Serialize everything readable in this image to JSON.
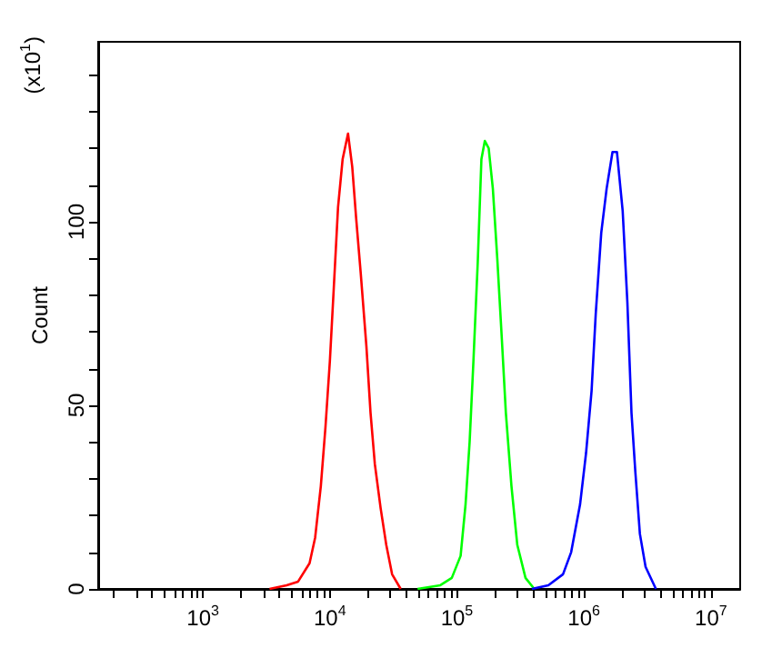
{
  "chart_data": {
    "type": "line",
    "ylabel": "Count",
    "annotations": [
      "(x10$^{1}$)"
    ],
    "xlim": [
      150,
      17000000
    ],
    "ylim": [
      0,
      149
    ],
    "log": "x",
    "grid": false,
    "marker": "none",
    "line_style": "solid",
    "xticks": [
      {
        "value": 200,
        "label": null
      },
      {
        "value": 300,
        "label": null
      },
      {
        "value": 400,
        "label": null
      },
      {
        "value": 500,
        "label": null
      },
      {
        "value": 600,
        "label": null
      },
      {
        "value": 700,
        "label": null
      },
      {
        "value": 800,
        "label": null
      },
      {
        "value": 900,
        "label": null
      },
      {
        "value": 1000,
        "label": "10$^{3}$"
      },
      {
        "value": 2000,
        "label": null
      },
      {
        "value": 3000,
        "label": null
      },
      {
        "value": 4000,
        "label": null
      },
      {
        "value": 5000,
        "label": null
      },
      {
        "value": 6000,
        "label": null
      },
      {
        "value": 7000,
        "label": null
      },
      {
        "value": 8000,
        "label": null
      },
      {
        "value": 9000,
        "label": null
      },
      {
        "value": 10000,
        "label": "10$^{4}$"
      },
      {
        "value": 20000,
        "label": null
      },
      {
        "value": 30000,
        "label": null
      },
      {
        "value": 40000,
        "label": null
      },
      {
        "value": 50000,
        "label": null
      },
      {
        "value": 60000,
        "label": null
      },
      {
        "value": 70000,
        "label": null
      },
      {
        "value": 80000,
        "label": null
      },
      {
        "value": 90000,
        "label": null
      },
      {
        "value": 100000,
        "label": "10$^{5}$"
      },
      {
        "value": 200000,
        "label": null
      },
      {
        "value": 300000,
        "label": null
      },
      {
        "value": 400000,
        "label": null
      },
      {
        "value": 500000,
        "label": null
      },
      {
        "value": 600000,
        "label": null
      },
      {
        "value": 700000,
        "label": null
      },
      {
        "value": 800000,
        "label": null
      },
      {
        "value": 900000,
        "label": null
      },
      {
        "value": 1000000,
        "label": "10$^{6}$"
      },
      {
        "value": 2000000,
        "label": null
      },
      {
        "value": 3000000,
        "label": null
      },
      {
        "value": 4000000,
        "label": null
      },
      {
        "value": 5000000,
        "label": null
      },
      {
        "value": 6000000,
        "label": null
      },
      {
        "value": 7000000,
        "label": null
      },
      {
        "value": 8000000,
        "label": null
      },
      {
        "value": 9000000,
        "label": null
      },
      {
        "value": 10000000,
        "label": "10$^{7}$"
      }
    ],
    "yticks": [
      0,
      {
        "value": 10,
        "label": null
      },
      {
        "value": 20,
        "label": null
      },
      {
        "value": 30,
        "label": null
      },
      {
        "value": 40,
        "label": null
      },
      50,
      {
        "value": 60,
        "label": null
      },
      {
        "value": 70,
        "label": null
      },
      {
        "value": 80,
        "label": null
      },
      {
        "value": 90,
        "label": null
      },
      100,
      {
        "value": 110,
        "label": null
      },
      {
        "value": 120,
        "label": null
      },
      {
        "value": 130,
        "label": null
      },
      {
        "value": 140,
        "label": null
      }
    ],
    "series": [
      {
        "color": "#ff0000",
        "x": [
          3350,
          4570,
          5620,
          6920,
          7660,
          8490,
          9230,
          10000,
          10700,
          11600,
          12600,
          13900,
          15000,
          16100,
          17500,
          19400,
          20900,
          22600,
          25100,
          27800,
          30900,
          36100
        ],
        "values": [
          0,
          1,
          2,
          7,
          14,
          28,
          44,
          62,
          81,
          104,
          117,
          124,
          115,
          101,
          86,
          66,
          48,
          34,
          22,
          12,
          4,
          0
        ]
      },
      {
        "color": "#00ff00",
        "x": [
          49000,
          74100,
          91200,
          107000,
          117000,
          126000,
          135000,
          146000,
          156000,
          166000,
          178000,
          192000,
          208000,
          226000,
          243000,
          269000,
          299000,
          347000,
          407000
        ],
        "values": [
          0,
          1,
          3,
          9,
          23,
          40,
          62,
          89,
          117,
          122,
          120,
          109,
          90,
          68,
          48,
          28,
          12,
          3,
          0
        ]
      },
      {
        "color": "#0000ff",
        "x": [
          389000,
          525000,
          685000,
          794000,
          933000,
          1040000,
          1150000,
          1240000,
          1370000,
          1510000,
          1680000,
          1820000,
          2020000,
          2200000,
          2370000,
          2540000,
          2760000,
          3060000,
          3690000
        ],
        "values": [
          0,
          1,
          4,
          10,
          23,
          37,
          54,
          75,
          97,
          109,
          119,
          119,
          103,
          78,
          48,
          32,
          15,
          6,
          0
        ]
      }
    ]
  }
}
